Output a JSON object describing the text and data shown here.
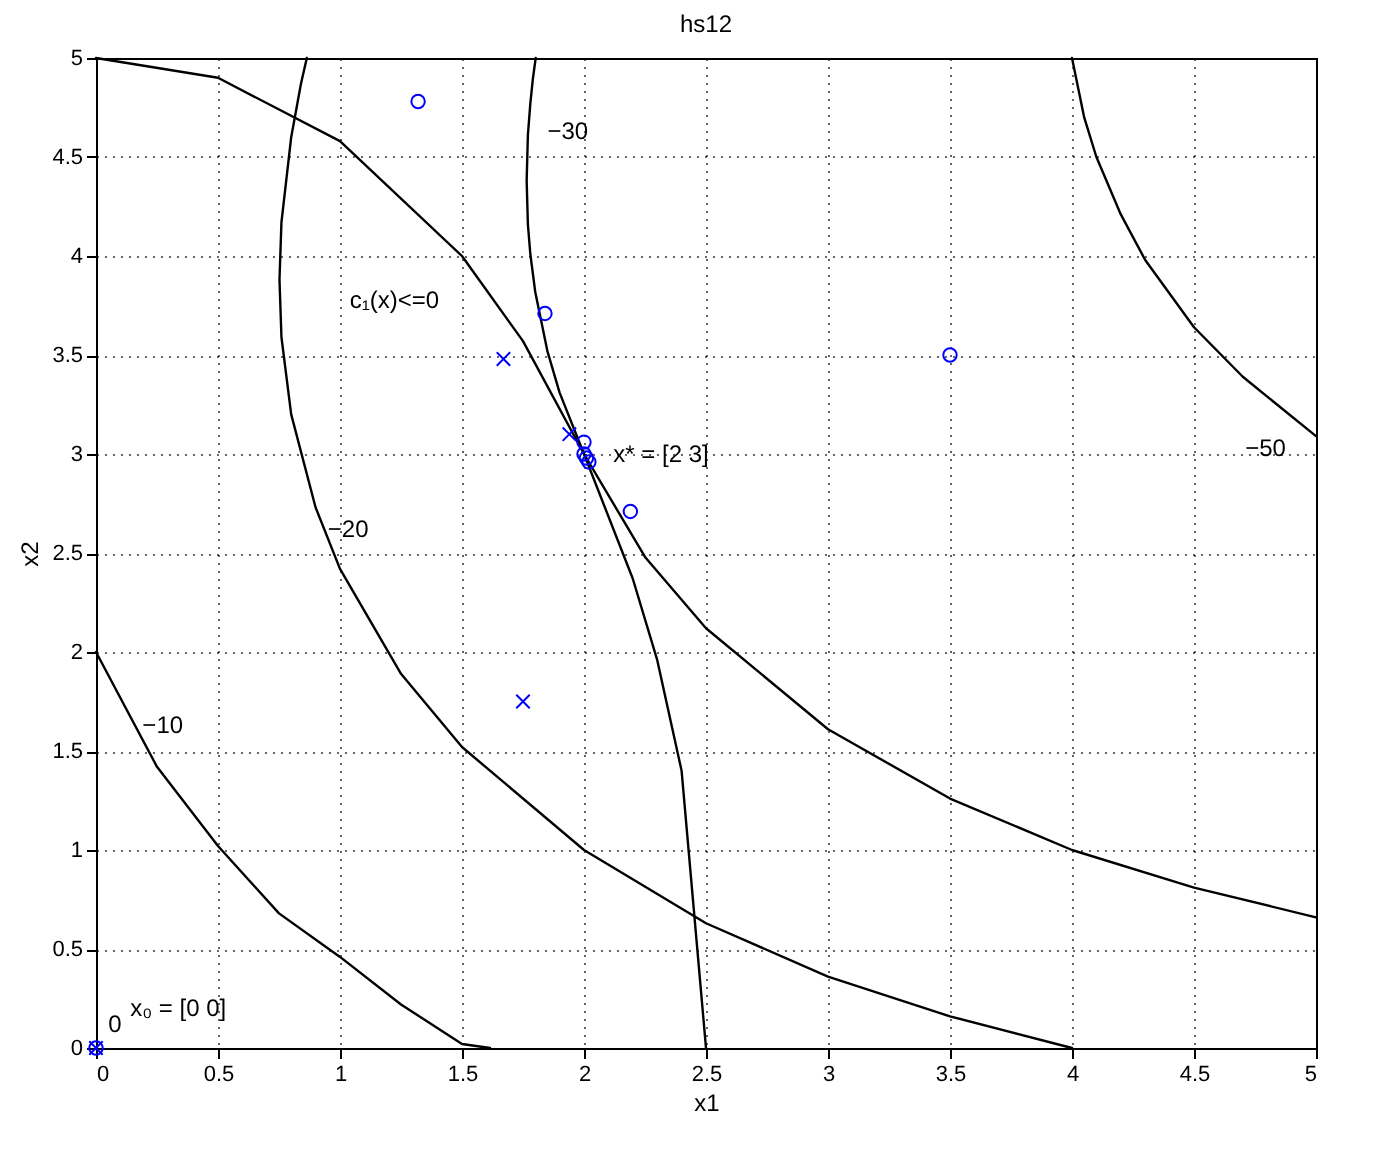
{
  "chart_data": {
    "type": "line",
    "title": "hs12",
    "xlabel": "x1",
    "ylabel": "x2",
    "xlim": [
      0,
      5
    ],
    "ylim": [
      0,
      5
    ],
    "xticks": [
      0,
      0.5,
      1,
      1.5,
      2,
      2.5,
      3,
      3.5,
      4,
      4.5,
      5
    ],
    "yticks": [
      0,
      0.5,
      1,
      1.5,
      2,
      2.5,
      3,
      3.5,
      4,
      4.5,
      5
    ],
    "grid": true,
    "line_style": "solid",
    "series": [
      {
        "color": "#000000",
        "x": [
          0,
          0.25,
          0.5,
          0.75,
          1,
          1.25,
          1.5,
          1.615
        ],
        "values": [
          2,
          1.42,
          1.02,
          0.68,
          0.46,
          0.22,
          0.02,
          0
        ]
      },
      {
        "color": "#000000",
        "x": [
          0.864,
          0.84,
          0.8,
          0.76,
          0.752,
          0.76,
          0.8,
          0.9,
          1,
          1.25,
          1.5,
          2,
          2.5,
          3,
          3.5,
          4
        ],
        "values": [
          5,
          4.87,
          4.6,
          4.17,
          3.88,
          3.59,
          3.2,
          2.73,
          2.42,
          1.89,
          1.52,
          1,
          0.63,
          0.36,
          0.16,
          0
        ]
      },
      {
        "color": "#000000",
        "x": [
          1.802,
          1.79,
          1.78,
          1.77,
          1.765,
          1.77,
          1.78,
          1.8,
          1.85,
          1.9,
          2,
          2.25,
          2.5,
          3,
          3.5,
          4,
          4.5,
          5
        ],
        "values": [
          5,
          4.89,
          4.77,
          4.61,
          4.38,
          4.16,
          4.01,
          3.82,
          3.52,
          3.31,
          3,
          2.48,
          2.12,
          1.61,
          1.26,
          1,
          0.81,
          0.66
        ]
      },
      {
        "color": "#000000",
        "x": [
          4,
          4.05,
          4.1,
          4.2,
          4.3,
          4.5,
          4.7,
          5
        ],
        "values": [
          5,
          4.7,
          4.5,
          4.21,
          3.98,
          3.64,
          3.39,
          3.09
        ]
      },
      {
        "color": "#000000",
        "x": [
          0,
          0.5,
          1,
          1.5,
          1.75,
          2,
          2.2,
          2.3,
          2.4,
          2.5
        ],
        "values": [
          5,
          4.9,
          4.58,
          4,
          3.57,
          3,
          2.37,
          1.96,
          1.4,
          0
        ]
      },
      {
        "type": "scatter",
        "marker": "circle",
        "color": "#0000ff",
        "x": [
          0,
          1.32,
          1.84,
          3.5,
          2.19,
          2,
          2,
          2.01,
          2.02
        ],
        "values": [
          0,
          4.78,
          3.71,
          3.5,
          2.71,
          3.06,
          3,
          2.98,
          2.96
        ]
      },
      {
        "type": "scatter",
        "marker": "cross",
        "color": "#0000ff",
        "x": [
          0,
          1.67,
          1.94,
          1.75
        ],
        "values": [
          0,
          3.48,
          3.1,
          1.75
        ]
      }
    ],
    "annotations": [
      "c₁(x)<=0",
      "x* = [2 3]",
      "−30",
      "−20",
      "−10",
      "−50",
      "x₀ = [0 0]",
      "0"
    ]
  }
}
